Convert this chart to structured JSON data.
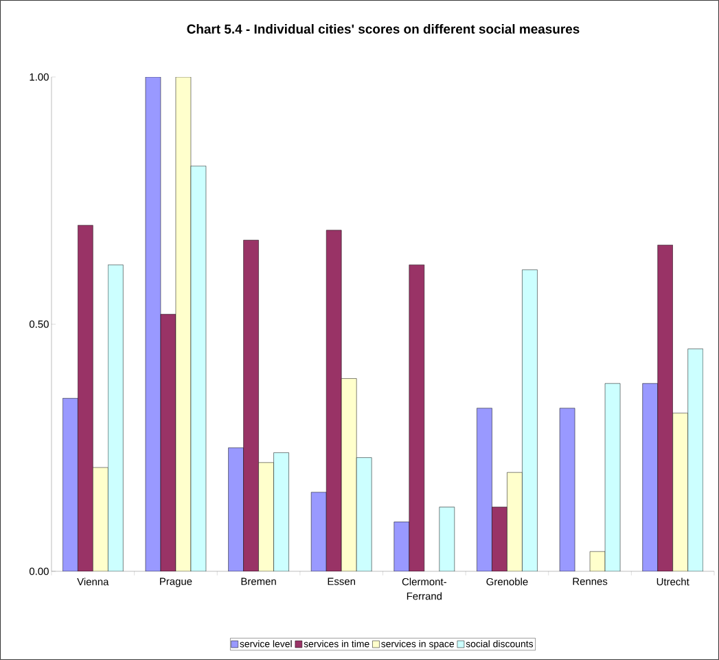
{
  "chart_data": {
    "type": "bar",
    "title": "Chart 5.4 - Individual cities' scores on different social measures",
    "categories": [
      "Vienna",
      "Prague",
      "Bremen",
      "Essen",
      "Clermont-Ferrand",
      "Grenoble",
      "Rennes",
      "Utrecht"
    ],
    "series": [
      {
        "name": "service level",
        "color": "#9999ff",
        "values": [
          0.35,
          1.0,
          0.25,
          0.16,
          0.1,
          0.33,
          0.33,
          0.38
        ]
      },
      {
        "name": "services in time",
        "color": "#993366",
        "values": [
          0.7,
          0.52,
          0.67,
          0.69,
          0.62,
          0.13,
          null,
          0.66
        ]
      },
      {
        "name": "services in space",
        "color": "#ffffcc",
        "values": [
          0.21,
          1.0,
          0.22,
          0.39,
          null,
          0.2,
          0.04,
          0.32
        ]
      },
      {
        "name": "social discounts",
        "color": "#ccffff",
        "values": [
          0.62,
          0.82,
          0.24,
          0.23,
          0.13,
          0.61,
          0.38,
          0.45
        ]
      }
    ],
    "ylim": [
      0,
      1
    ],
    "yticks": [
      {
        "value": 0,
        "label": "0.00"
      },
      {
        "value": 0.5,
        "label": "0.50"
      },
      {
        "value": 1,
        "label": "1.00"
      }
    ],
    "legend": "bottom"
  }
}
